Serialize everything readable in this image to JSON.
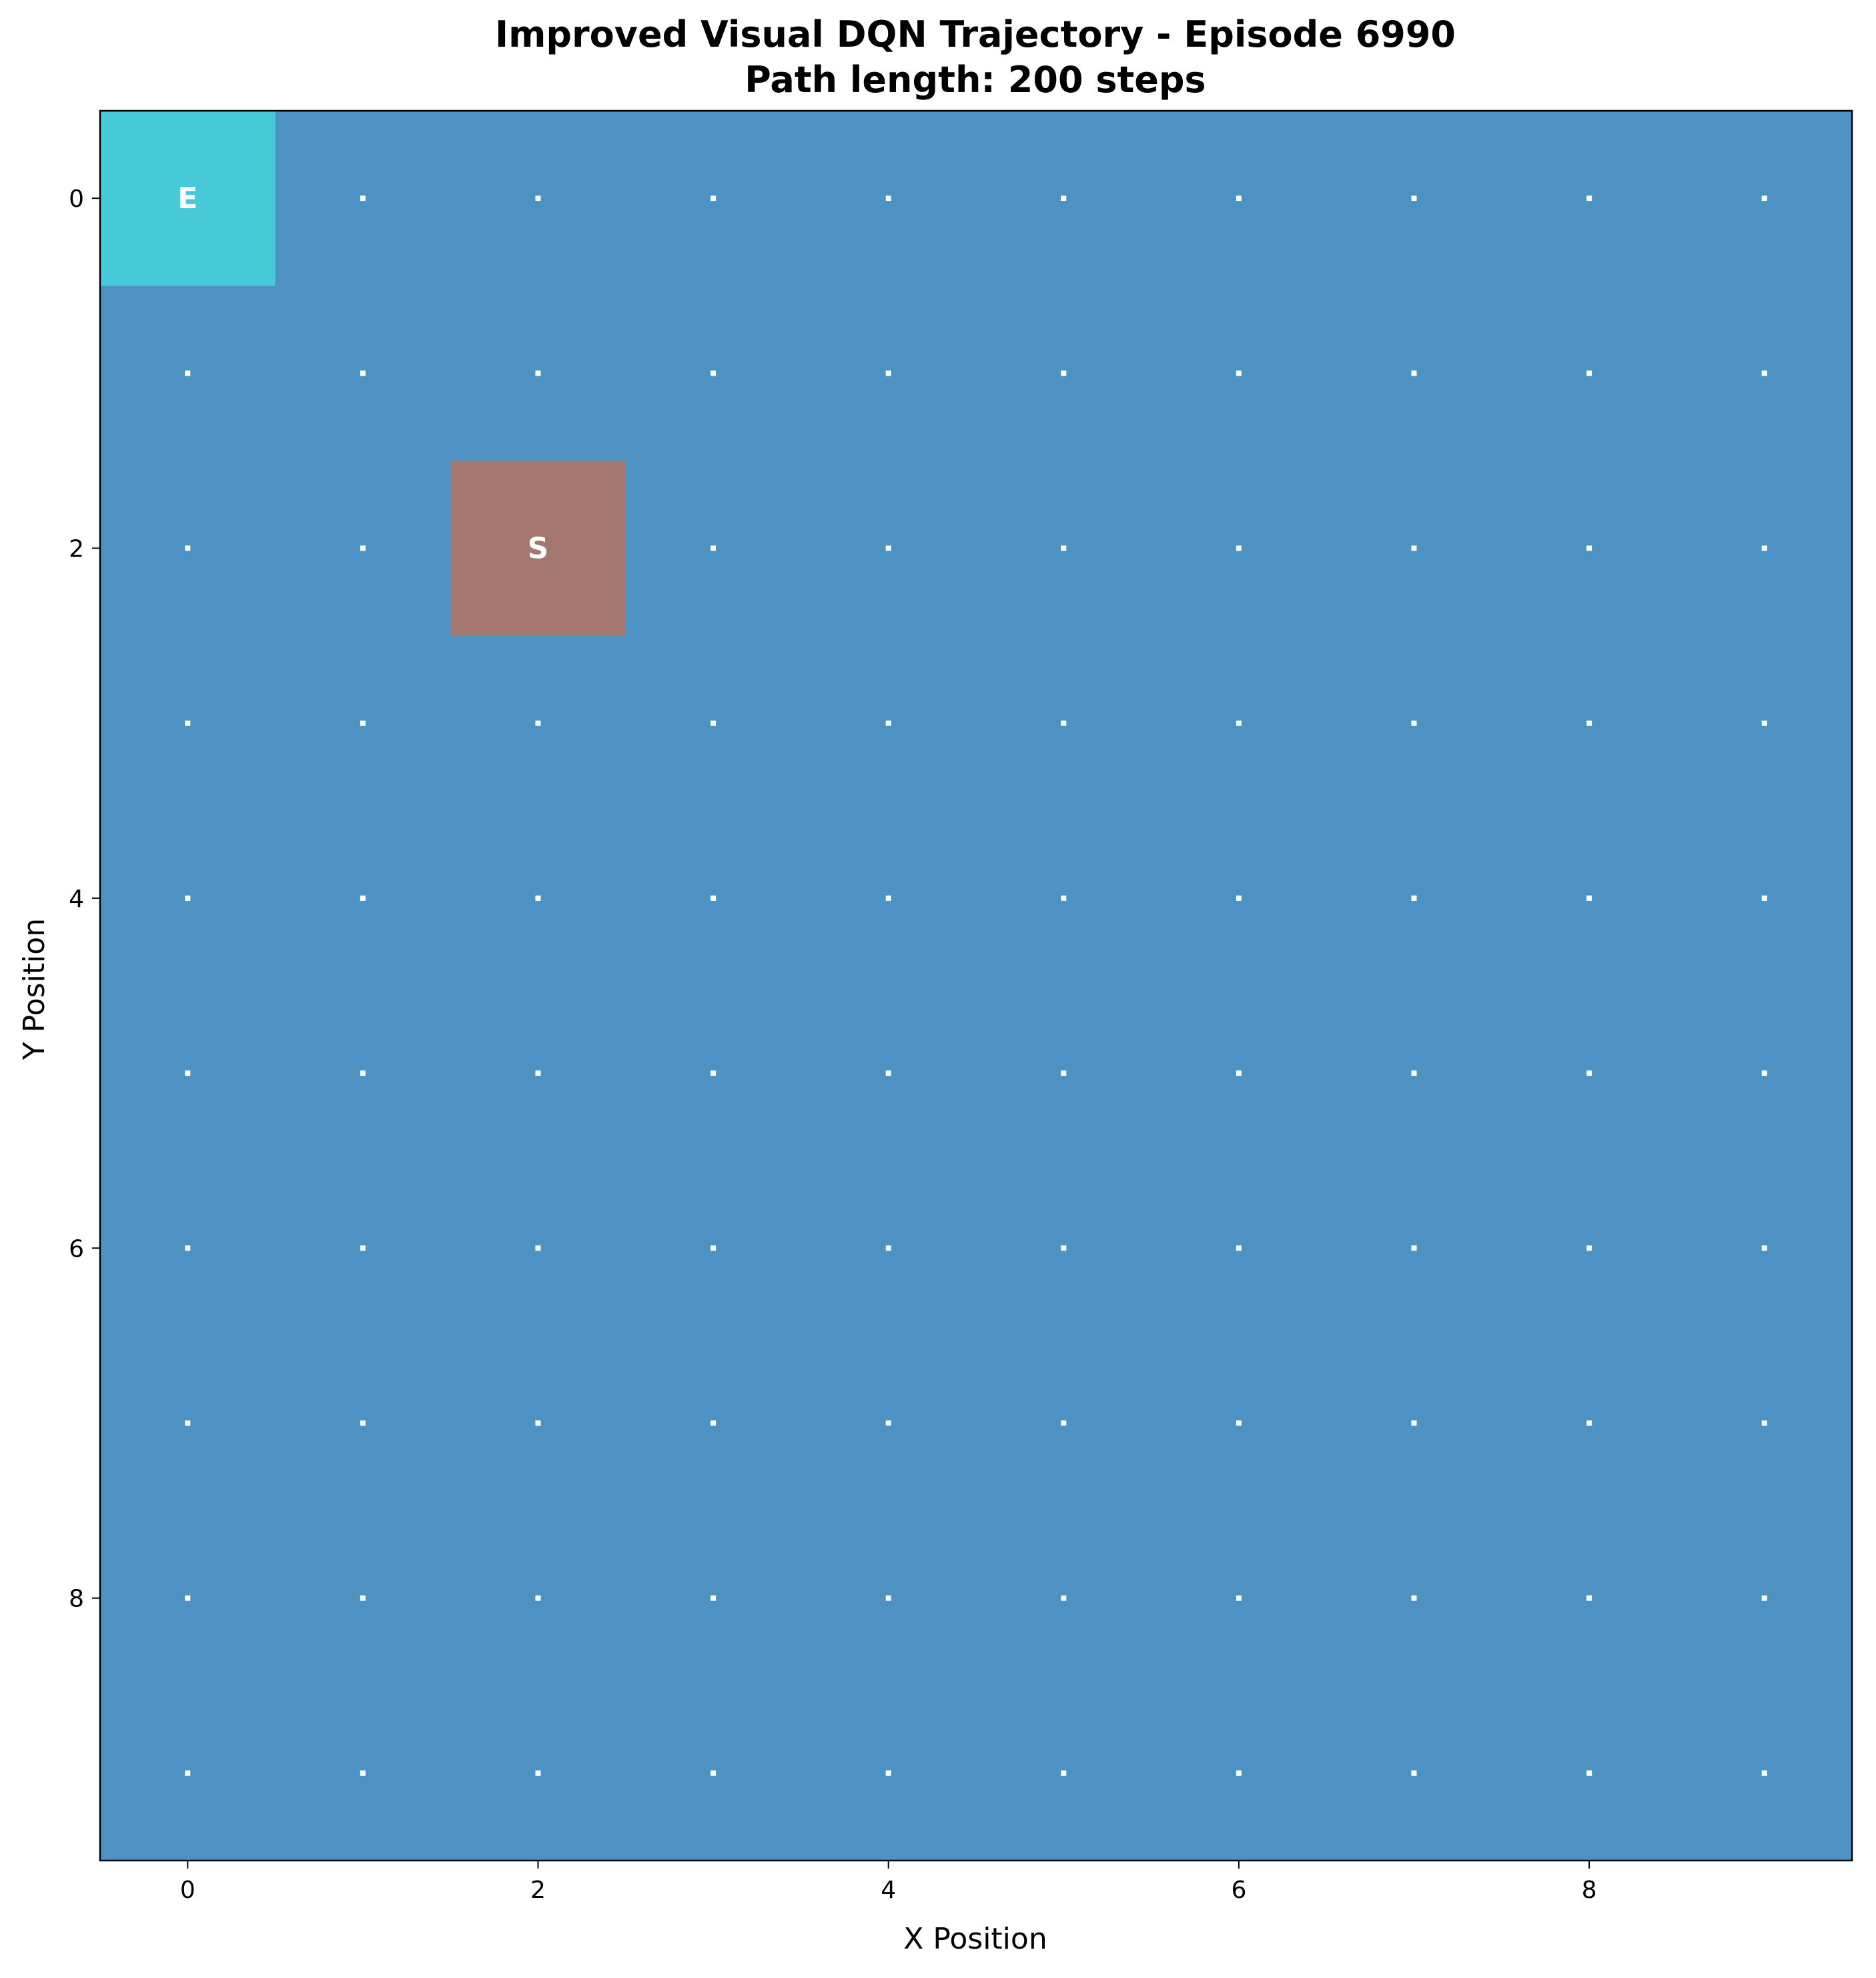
{
  "chart_data": {
    "type": "heatmap",
    "title_lines": [
      "Improved Visual DQN Trajectory - Episode 6990",
      "Path length: 200 steps"
    ],
    "xlabel": "X Position",
    "ylabel": "Y Position",
    "grid_size": [
      10,
      10
    ],
    "xlim": [
      -0.5,
      9.5
    ],
    "ylim": [
      9.5,
      -0.5
    ],
    "x_ticks": [
      "0",
      "2",
      "4",
      "6",
      "8"
    ],
    "y_ticks": [
      "0",
      "2",
      "4",
      "6",
      "8"
    ],
    "background_color": "#4d92c3",
    "dot_color": "#ffffff",
    "special_cells": [
      {
        "label": "E",
        "x": 0,
        "y": 0,
        "color": "#46cad8"
      },
      {
        "label": "S",
        "x": 2,
        "y": 2,
        "color": "#a3776d"
      }
    ]
  }
}
